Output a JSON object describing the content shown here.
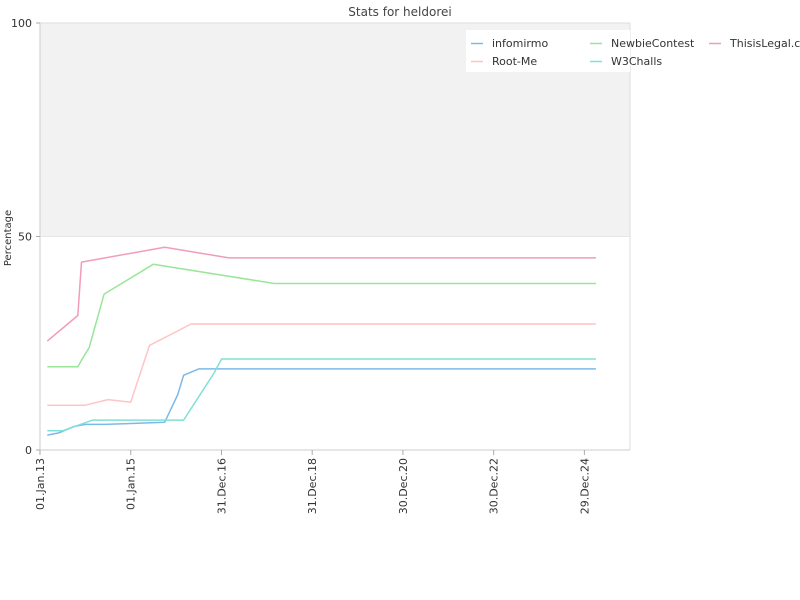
{
  "chart_data": {
    "type": "line",
    "title": "Stats for heldorei",
    "xlabel": "",
    "ylabel": "Percentage",
    "ylim": [
      0,
      100
    ],
    "yticks": [
      0,
      50,
      100
    ],
    "xlim": [
      "2013-01-01",
      "2025-12-31"
    ],
    "xticks": [
      {
        "date": "2013-01-01",
        "label": "01.Jan.13"
      },
      {
        "date": "2015-01-01",
        "label": "01.Jan.15"
      },
      {
        "date": "2016-12-31",
        "label": "31.Dec.16"
      },
      {
        "date": "2018-12-31",
        "label": "31.Dec.18"
      },
      {
        "date": "2020-12-30",
        "label": "30.Dec.20"
      },
      {
        "date": "2022-12-30",
        "label": "30.Dec.22"
      },
      {
        "date": "2024-12-29",
        "label": "29.Dec.24"
      }
    ],
    "shaded_band": {
      "from": 50,
      "to": 100,
      "color": "#f2f2f2"
    },
    "legend_position": "top-right",
    "series": [
      {
        "name": "infomirmo",
        "color": "#7db9e8",
        "points": [
          [
            "2013-03-01",
            3.5
          ],
          [
            "2013-06-01",
            4
          ],
          [
            "2013-10-01",
            5.5
          ],
          [
            "2014-01-01",
            6
          ],
          [
            "2014-06-01",
            6
          ],
          [
            "2015-01-01",
            6.2
          ],
          [
            "2015-10-01",
            6.5
          ],
          [
            "2016-01-15",
            13
          ],
          [
            "2016-03-01",
            17.5
          ],
          [
            "2016-07-01",
            19
          ],
          [
            "2025-04-01",
            19
          ]
        ]
      },
      {
        "name": "NewbieContest",
        "color": "#99e699",
        "points": [
          [
            "2013-03-01",
            19.5
          ],
          [
            "2013-11-01",
            19.5
          ],
          [
            "2013-12-01",
            21
          ],
          [
            "2014-02-01",
            24
          ],
          [
            "2014-06-01",
            36.5
          ],
          [
            "2015-07-01",
            43.5
          ],
          [
            "2018-03-01",
            39
          ],
          [
            "2025-04-01",
            39
          ]
        ]
      },
      {
        "name": "ThisisLegal.com",
        "color": "#f29bbb",
        "points": [
          [
            "2013-03-01",
            25.5
          ],
          [
            "2013-11-01",
            31.5
          ],
          [
            "2013-12-01",
            44
          ],
          [
            "2015-10-01",
            47.5
          ],
          [
            "2017-03-01",
            45
          ],
          [
            "2025-04-01",
            45
          ]
        ]
      },
      {
        "name": "Root-Me",
        "color": "#ffc4c4",
        "points": [
          [
            "2013-03-01",
            10.5
          ],
          [
            "2014-01-01",
            10.5
          ],
          [
            "2014-07-01",
            11.8
          ],
          [
            "2015-01-01",
            11.2
          ],
          [
            "2015-06-01",
            24.5
          ],
          [
            "2016-05-01",
            29.5
          ],
          [
            "2025-04-01",
            29.5
          ]
        ]
      },
      {
        "name": "W3Challs",
        "color": "#7fe0d6",
        "points": [
          [
            "2013-03-01",
            4.5
          ],
          [
            "2013-07-01",
            4.5
          ],
          [
            "2014-03-01",
            7
          ],
          [
            "2016-03-01",
            7
          ],
          [
            "2016-11-01",
            18
          ],
          [
            "2017-01-01",
            21.3
          ],
          [
            "2025-04-01",
            21.3
          ]
        ]
      }
    ]
  }
}
